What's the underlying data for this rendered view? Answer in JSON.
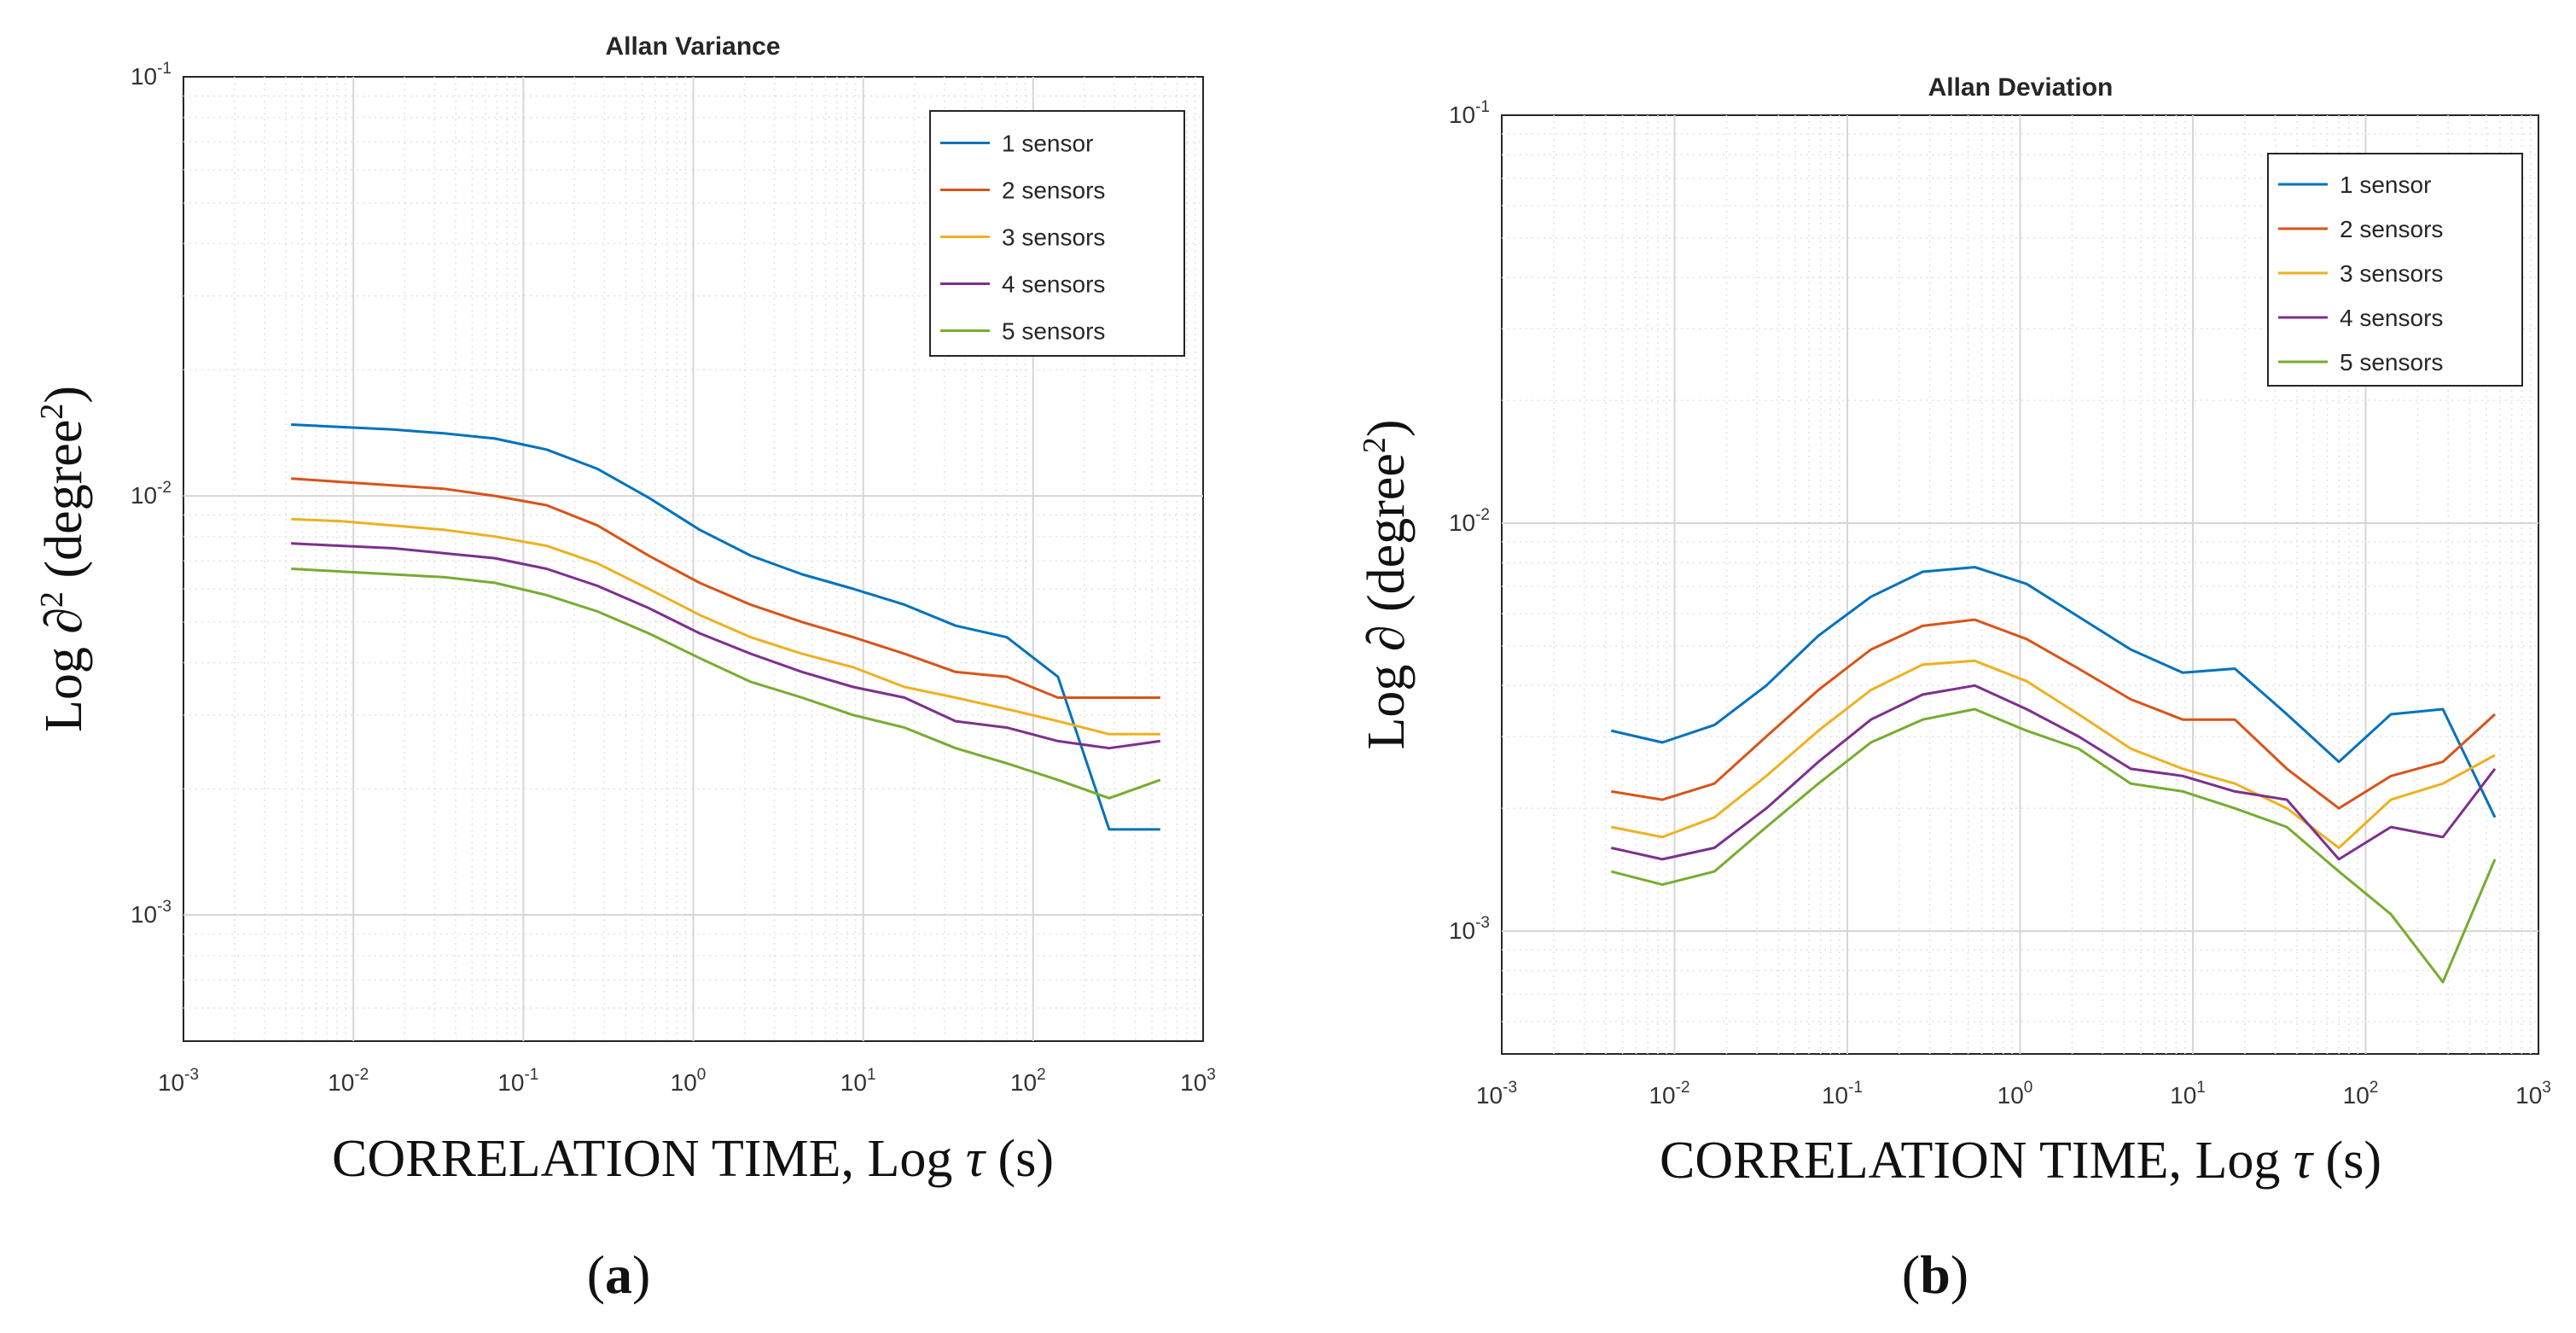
{
  "chart_data": [
    {
      "type": "line",
      "panel": "a",
      "title": "Allan Variance",
      "xlabel": {
        "main": "CORRELATION TIME, Log",
        "symbol": "τ",
        "unit": "(s)"
      },
      "ylabel": {
        "main": "Log ∂",
        "sup_after_symbol": "2",
        "unit_open": " (degree",
        "unit_sup": "2",
        "unit_close": ")"
      },
      "xscale": "log",
      "yscale": "log",
      "xlim": [
        0.001,
        1000
      ],
      "ylim": [
        0.0005,
        0.1
      ],
      "x_ticks": [
        {
          "base": "10",
          "exp": "-3"
        },
        {
          "base": "10",
          "exp": "-2"
        },
        {
          "base": "10",
          "exp": "-1"
        },
        {
          "base": "10",
          "exp": "0"
        },
        {
          "base": "10",
          "exp": "1"
        },
        {
          "base": "10",
          "exp": "2"
        },
        {
          "base": "10",
          "exp": "3"
        }
      ],
      "y_ticks": [
        {
          "base": "10",
          "exp": "-3"
        },
        {
          "base": "10",
          "exp": "-2"
        },
        {
          "base": "10",
          "exp": "-1"
        }
      ],
      "grid": true,
      "legend_position": "top-right",
      "x": [
        0.0043,
        0.0085,
        0.017,
        0.034,
        0.068,
        0.137,
        0.273,
        0.546,
        1.09,
        2.18,
        4.37,
        8.74,
        17.5,
        35,
        70,
        140,
        280,
        560
      ],
      "series": [
        {
          "name": "1 sensor",
          "color": "#0072BD",
          "values": [
            0.0148,
            0.0146,
            0.0144,
            0.0141,
            0.0137,
            0.0129,
            0.0116,
            0.0099,
            0.0083,
            0.0072,
            0.0065,
            0.006,
            0.0055,
            0.0049,
            0.0046,
            0.0037,
            0.0016,
            0.0016
          ]
        },
        {
          "name": "2 sensors",
          "color": "#D95319",
          "values": [
            0.011,
            0.0108,
            0.0106,
            0.0104,
            0.01,
            0.0095,
            0.0085,
            0.0072,
            0.0062,
            0.0055,
            0.005,
            0.0046,
            0.0042,
            0.0038,
            0.0037,
            0.0033,
            0.0033,
            0.0033
          ]
        },
        {
          "name": "3 sensors",
          "color": "#EDB120",
          "values": [
            0.0088,
            0.0087,
            0.0085,
            0.0083,
            0.008,
            0.0076,
            0.0069,
            0.006,
            0.0052,
            0.0046,
            0.0042,
            0.0039,
            0.0035,
            0.0033,
            0.0031,
            0.0029,
            0.0027,
            0.0027
          ]
        },
        {
          "name": "4 sensors",
          "color": "#7E2F8E",
          "values": [
            0.0077,
            0.0076,
            0.0075,
            0.0073,
            0.0071,
            0.0067,
            0.0061,
            0.0054,
            0.0047,
            0.0042,
            0.0038,
            0.0035,
            0.0033,
            0.0029,
            0.0028,
            0.0026,
            0.0025,
            0.0026
          ]
        },
        {
          "name": "5 sensors",
          "color": "#77AC30",
          "values": [
            0.0067,
            0.0066,
            0.0065,
            0.0064,
            0.0062,
            0.0058,
            0.0053,
            0.0047,
            0.0041,
            0.0036,
            0.0033,
            0.003,
            0.0028,
            0.0025,
            0.0023,
            0.0021,
            0.0019,
            0.0021
          ]
        }
      ]
    },
    {
      "type": "line",
      "panel": "b",
      "title": "Allan Deviation",
      "xlabel": {
        "main": "CORRELATION TIME, Log",
        "symbol": "τ",
        "unit": "(s)"
      },
      "ylabel": {
        "main": "Log ∂",
        "sup_after_symbol": "",
        "unit_open": " (degree",
        "unit_sup": "2",
        "unit_close": ")"
      },
      "xscale": "log",
      "yscale": "log",
      "xlim": [
        0.001,
        1000
      ],
      "ylim": [
        0.0005,
        0.1
      ],
      "x_ticks": [
        {
          "base": "10",
          "exp": "-3"
        },
        {
          "base": "10",
          "exp": "-2"
        },
        {
          "base": "10",
          "exp": "-1"
        },
        {
          "base": "10",
          "exp": "0"
        },
        {
          "base": "10",
          "exp": "1"
        },
        {
          "base": "10",
          "exp": "2"
        },
        {
          "base": "10",
          "exp": "3"
        }
      ],
      "y_ticks": [
        {
          "base": "10",
          "exp": "-3"
        },
        {
          "base": "10",
          "exp": "-2"
        },
        {
          "base": "10",
          "exp": "-1"
        }
      ],
      "grid": true,
      "legend_position": "top-right",
      "x": [
        0.0043,
        0.0085,
        0.017,
        0.034,
        0.068,
        0.137,
        0.273,
        0.546,
        1.09,
        2.18,
        4.37,
        8.74,
        17.5,
        35,
        70,
        140,
        280,
        560
      ],
      "series": [
        {
          "name": "1 sensor",
          "color": "#0072BD",
          "values": [
            0.0031,
            0.0029,
            0.0032,
            0.004,
            0.0053,
            0.0066,
            0.0076,
            0.0078,
            0.0071,
            0.0059,
            0.0049,
            0.0043,
            0.0044,
            0.0034,
            0.0026,
            0.0034,
            0.0035,
            0.0019
          ]
        },
        {
          "name": "2 sensors",
          "color": "#D95319",
          "values": [
            0.0022,
            0.0021,
            0.0023,
            0.003,
            0.0039,
            0.0049,
            0.0056,
            0.0058,
            0.0052,
            0.0044,
            0.0037,
            0.0033,
            0.0033,
            0.0025,
            0.002,
            0.0024,
            0.0026,
            0.0034
          ]
        },
        {
          "name": "3 sensors",
          "color": "#EDB120",
          "values": [
            0.0018,
            0.0017,
            0.0019,
            0.0024,
            0.0031,
            0.0039,
            0.0045,
            0.0046,
            0.0041,
            0.0034,
            0.0028,
            0.0025,
            0.0023,
            0.002,
            0.0016,
            0.0021,
            0.0023,
            0.0027
          ]
        },
        {
          "name": "4 sensors",
          "color": "#7E2F8E",
          "values": [
            0.0016,
            0.0015,
            0.0016,
            0.002,
            0.0026,
            0.0033,
            0.0038,
            0.004,
            0.0035,
            0.003,
            0.0025,
            0.0024,
            0.0022,
            0.0021,
            0.0015,
            0.0018,
            0.0017,
            0.0025
          ]
        },
        {
          "name": "5 sensors",
          "color": "#77AC30",
          "values": [
            0.0014,
            0.0013,
            0.0014,
            0.0018,
            0.0023,
            0.0029,
            0.0033,
            0.0035,
            0.0031,
            0.0028,
            0.0023,
            0.0022,
            0.002,
            0.0018,
            0.0014,
            0.0011,
            0.00075,
            0.0015
          ]
        }
      ]
    }
  ],
  "captions": [
    {
      "open": "(",
      "letter": "a",
      "close": ")"
    },
    {
      "open": "(",
      "letter": "b",
      "close": ")"
    }
  ]
}
